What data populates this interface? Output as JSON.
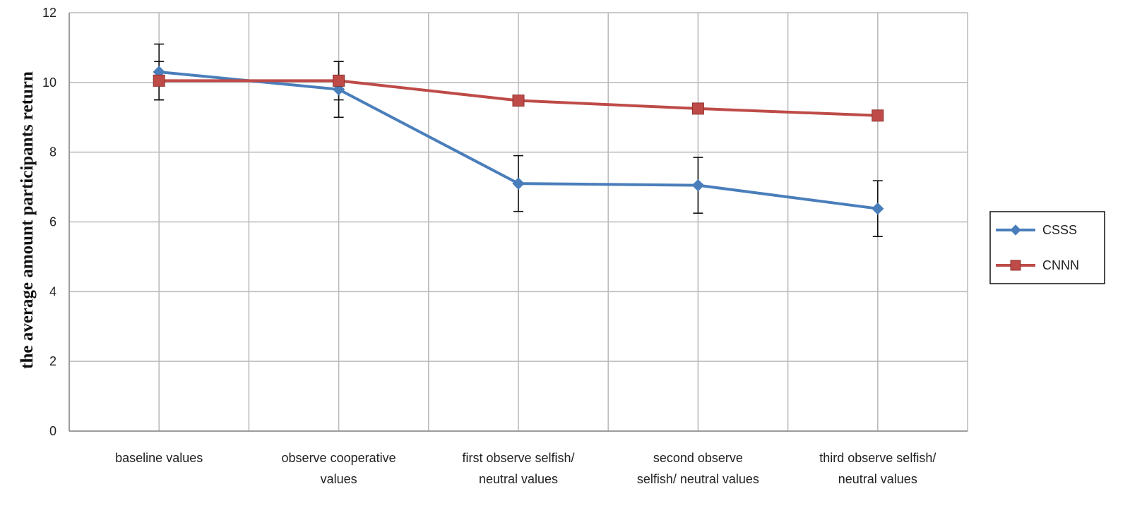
{
  "chart_data": {
    "type": "line",
    "ylabel": "the average  amount participants  return",
    "xlabel": "",
    "ylim": [
      0,
      12
    ],
    "yticks": [
      0,
      2,
      4,
      6,
      8,
      10,
      12
    ],
    "grid": true,
    "legend_position": "right",
    "categories": [
      [
        "baseline values"
      ],
      [
        "observe cooperative",
        "values"
      ],
      [
        "first observe selfish/",
        "neutral values"
      ],
      [
        "second observe",
        "selfish/ neutral values"
      ],
      [
        "third observe selfish/",
        "neutral values"
      ]
    ],
    "series": [
      {
        "name": "CSSS",
        "color": "#4a7ebb",
        "marker": "diamond",
        "values": [
          10.3,
          9.8,
          7.1,
          7.05,
          6.38
        ],
        "error": [
          0.8,
          0.8,
          0.8,
          0.8,
          0.8
        ]
      },
      {
        "name": "CNNN",
        "color": "#be4b48",
        "marker": "square",
        "values": [
          10.05,
          10.05,
          9.48,
          9.25,
          9.05
        ],
        "error": [
          0.55,
          0.55,
          0.1,
          0.1,
          0.1
        ]
      }
    ]
  }
}
